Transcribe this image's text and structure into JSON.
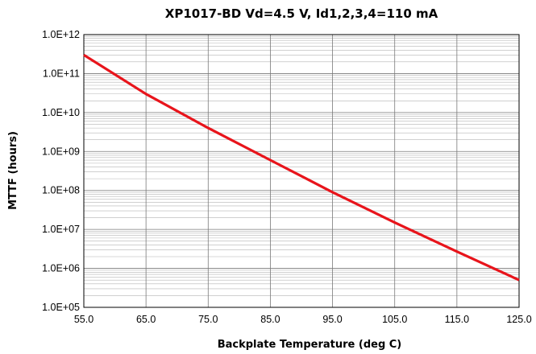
{
  "chart_data": {
    "type": "line",
    "title": "XP1017-BD Vd=4.5 V, Id1,2,3,4=110 mA",
    "xlabel": "Backplate Temperature (deg C)",
    "ylabel": "MTTF (hours)",
    "xlim": [
      55,
      125
    ],
    "ylim": [
      100000,
      1000000000000
    ],
    "yscale": "log",
    "grid": true,
    "x_ticks": [
      "55.0",
      "65.0",
      "75.0",
      "85.0",
      "95.0",
      "105.0",
      "115.0",
      "125.0"
    ],
    "y_ticks": [
      "1.0E+05",
      "1.0E+06",
      "1.0E+07",
      "1.0E+08",
      "1.0E+09",
      "1.0E+10",
      "1.0E+11",
      "1.0E+12"
    ],
    "series": [
      {
        "color": "#e8141b",
        "x": [
          55,
          65,
          75,
          85,
          95,
          105,
          115,
          125
        ],
        "y": [
          300000000000,
          30000000000,
          4000000000,
          600000000,
          90000000,
          15000000,
          2700000,
          500000
        ]
      }
    ]
  }
}
